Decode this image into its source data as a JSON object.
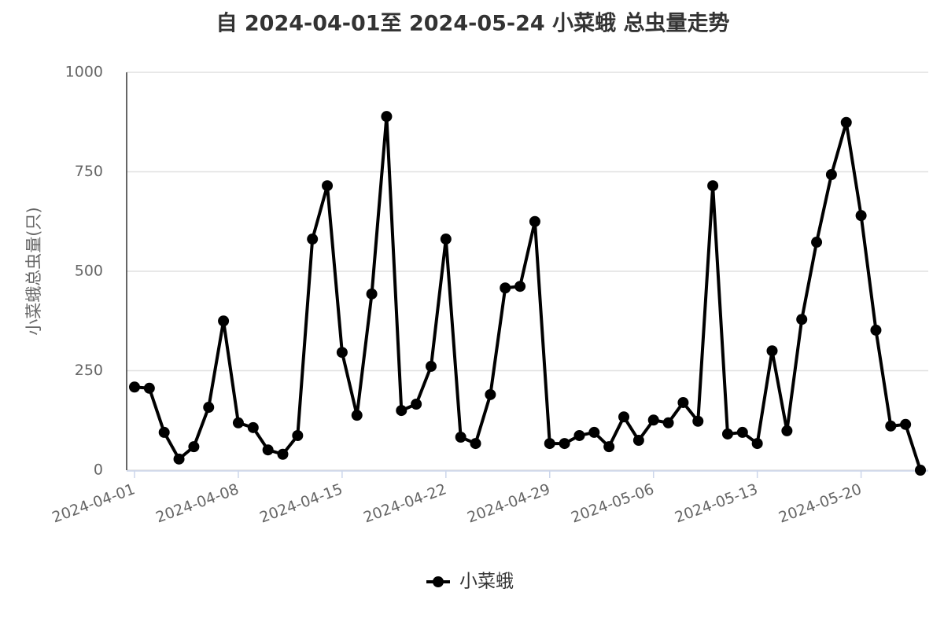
{
  "chart_data": {
    "type": "line",
    "title": "自 2024-04-01至 2024-05-24 小菜蛾 总虫量走势",
    "y_label": "小菜蛾总虫量(只)",
    "x": [
      "2024-04-01",
      "2024-04-02",
      "2024-04-03",
      "2024-04-04",
      "2024-04-05",
      "2024-04-06",
      "2024-04-07",
      "2024-04-08",
      "2024-04-09",
      "2024-04-10",
      "2024-04-11",
      "2024-04-12",
      "2024-04-13",
      "2024-04-14",
      "2024-04-15",
      "2024-04-16",
      "2024-04-17",
      "2024-04-18",
      "2024-04-19",
      "2024-04-20",
      "2024-04-21",
      "2024-04-22",
      "2024-04-23",
      "2024-04-24",
      "2024-04-25",
      "2024-04-26",
      "2024-04-27",
      "2024-04-28",
      "2024-04-29",
      "2024-04-30",
      "2024-05-01",
      "2024-05-02",
      "2024-05-03",
      "2024-05-04",
      "2024-05-05",
      "2024-05-06",
      "2024-05-07",
      "2024-05-08",
      "2024-05-09",
      "2024-05-10",
      "2024-05-11",
      "2024-05-12",
      "2024-05-13",
      "2024-05-14",
      "2024-05-15",
      "2024-05-16",
      "2024-05-17",
      "2024-05-18",
      "2024-05-19",
      "2024-05-20",
      "2024-05-21",
      "2024-05-22",
      "2024-05-23",
      "2024-05-24"
    ],
    "series": [
      {
        "name": "小菜蛾",
        "color": "#000000",
        "values": [
          209,
          206,
          95,
          28,
          59,
          158,
          375,
          119,
          107,
          51,
          40,
          87,
          581,
          715,
          296,
          138,
          443,
          889,
          150,
          166,
          261,
          581,
          83,
          67,
          190,
          458,
          462,
          625,
          67,
          67,
          87,
          95,
          59,
          134,
          75,
          126,
          119,
          170,
          123,
          715,
          91,
          95,
          67,
          300,
          99,
          379,
          573,
          743,
          874,
          640,
          352,
          111,
          115,
          0
        ]
      }
    ],
    "xticks": [
      "2024-04-01",
      "2024-04-08",
      "2024-04-15",
      "2024-04-22",
      "2024-04-29",
      "2024-05-06",
      "2024-05-13",
      "2024-05-20"
    ],
    "ylim": [
      0,
      1000
    ],
    "yticks": [
      0,
      250,
      500,
      750,
      1000
    ],
    "grid": true,
    "legend": "bottom"
  }
}
